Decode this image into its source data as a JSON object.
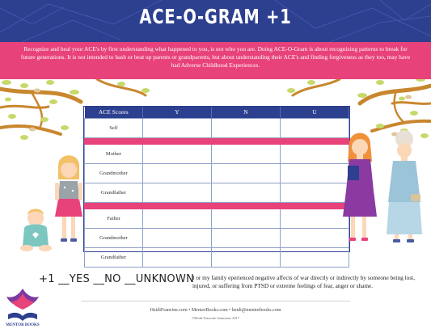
{
  "header": {
    "title": "ACE-O-GRAM +1"
  },
  "intro": {
    "text": "Recognize and heal your ACE's by first understanding what happened to you, is not who you are. Doing ACE-O-Gram is about recognizing patterns to break for future generations. It is not intended to bash or beat up parents or grandparents, but about understanding their ACE's and finding forgiveness as they too, may have had Adverse Childhood Experiences."
  },
  "table": {
    "headers": [
      "ACE Scores",
      "Y",
      "N",
      "U"
    ],
    "rows": [
      {
        "label": "Self"
      },
      {
        "label": ""
      },
      {
        "label": "Mother"
      },
      {
        "label": "Grandmother"
      },
      {
        "label": "Grandfather"
      },
      {
        "label": ""
      },
      {
        "label": "Father"
      },
      {
        "label": "Grandmother"
      },
      {
        "label": "Grandfather"
      }
    ]
  },
  "plus_one": {
    "line": "+1 __YES __NO __UNKNOWN",
    "description": "I or my family eperienced negative affects of war directly or indirectly by someone being lost, injured, or suffering from PTSD or extreme feelings of fear, anger or shame."
  },
  "footer": {
    "contact": "HeidiFrancine.com • MentorBooks.com • heidi@mentorbooks.com",
    "copyright": "©Heidi Francine Sammons 2017"
  },
  "logo": {
    "text": "MENTOR BOOKS"
  },
  "colors": {
    "navy": "#2d3f8f",
    "pink": "#e8427a",
    "branch": "#c8872e",
    "leaf": "#c7d96a"
  }
}
